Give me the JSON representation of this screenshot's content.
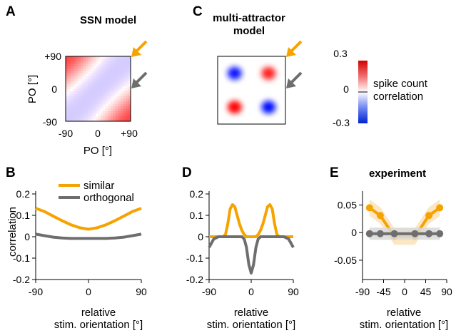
{
  "figure": {
    "panels": [
      {
        "letter": "A",
        "title": "SSN model"
      },
      {
        "letter": "C",
        "title_lines": [
          "multi-attractor",
          "model"
        ]
      },
      {
        "letter": "B"
      },
      {
        "letter": "D"
      },
      {
        "letter": "E",
        "title": "experiment"
      }
    ]
  },
  "colors": {
    "similar": "#f5a300",
    "orthogonal": "#6e6e6e",
    "positive": "#e60000",
    "negative": "#0033e0",
    "similar_band": "#fbe2b8",
    "orthogonal_band": "#d9d9d9"
  },
  "icons": [
    "arrow-similar-icon",
    "arrow-orthogonal-icon"
  ],
  "chart_data": [
    {
      "id": "A",
      "type": "heatmap",
      "title": "SSN model",
      "xlabel": "PO [°]",
      "ylabel": "PO [°]",
      "xticks": [
        "-90",
        "0",
        "+90"
      ],
      "yticks": [
        "+90",
        "0",
        "-90"
      ],
      "xlim": [
        -90,
        90
      ],
      "ylim": [
        -90,
        90
      ],
      "color_range": [
        -0.3,
        0.3
      ],
      "pattern": {
        "corner_value": 0.22,
        "negative_value": -0.05
      }
    },
    {
      "id": "C",
      "type": "heatmap",
      "title": "multi-attractor model",
      "pattern": {
        "blobs": [
          {
            "x": -45,
            "y": 45,
            "value": -0.28
          },
          {
            "x": 45,
            "y": 45,
            "value": 0.26
          },
          {
            "x": -45,
            "y": -45,
            "value": 0.3
          },
          {
            "x": 45,
            "y": -45,
            "value": -0.3
          }
        ]
      },
      "colorbar": {
        "ticks": [
          "0.3",
          "0",
          "-0.3"
        ],
        "label_lines": [
          "spike count",
          "correlation"
        ],
        "range": [
          -0.3,
          0.3
        ]
      }
    },
    {
      "id": "B",
      "type": "line",
      "xlabel_lines": [
        "relative",
        "stim. orientation [°]"
      ],
      "ylabel": "correlation",
      "xlim": [
        -90,
        90
      ],
      "ylim": [
        -0.2,
        0.2
      ],
      "xticks": [
        "-90",
        "0",
        "90"
      ],
      "yticks": [
        "0.2",
        "0.1",
        "0",
        "-0.1",
        "-0.2"
      ],
      "legend": [
        "similar",
        "orthogonal"
      ],
      "x": [
        -90,
        -75,
        -60,
        -45,
        -30,
        -15,
        0,
        15,
        30,
        45,
        60,
        75,
        90
      ],
      "series": [
        {
          "name": "similar",
          "values": [
            0.133,
            0.118,
            0.096,
            0.075,
            0.056,
            0.042,
            0.035,
            0.042,
            0.056,
            0.075,
            0.096,
            0.118,
            0.133
          ]
        },
        {
          "name": "orthogonal",
          "values": [
            0.012,
            0.005,
            -0.002,
            -0.006,
            -0.008,
            -0.008,
            -0.008,
            -0.008,
            -0.008,
            -0.006,
            -0.002,
            0.005,
            0.012
          ]
        }
      ]
    },
    {
      "id": "D",
      "type": "line",
      "xlabel_lines": [
        "relative",
        "stim. orientation [°]"
      ],
      "xlim": [
        -90,
        90
      ],
      "ylim": [
        -0.2,
        0.2
      ],
      "xticks": [
        "-90",
        "0",
        "90"
      ],
      "yticks": [
        "0.2",
        "0.1",
        "0",
        "-0.1",
        "-0.2"
      ],
      "x": [
        -90,
        -80,
        -70,
        -60,
        -55,
        -50,
        -45,
        -40,
        -35,
        -30,
        -25,
        -20,
        -15,
        -10,
        -5,
        0,
        5,
        10,
        15,
        20,
        25,
        30,
        35,
        40,
        45,
        50,
        55,
        60,
        70,
        80,
        90
      ],
      "series": [
        {
          "name": "similar",
          "values": [
            0.0,
            0.0,
            0.0,
            0.0,
            0.01,
            0.06,
            0.13,
            0.15,
            0.14,
            0.1,
            0.06,
            0.03,
            0.01,
            0.0,
            0.0,
            0.0,
            0.0,
            0.0,
            0.01,
            0.03,
            0.06,
            0.1,
            0.14,
            0.15,
            0.13,
            0.06,
            0.01,
            0.0,
            0.0,
            0.0,
            0.0
          ]
        },
        {
          "name": "orthogonal",
          "values": [
            -0.05,
            -0.01,
            0.0,
            0.0,
            0.0,
            0.0,
            0.0,
            0.0,
            0.0,
            0.0,
            0.0,
            0.0,
            -0.01,
            -0.05,
            -0.13,
            -0.17,
            -0.13,
            -0.05,
            -0.01,
            0.0,
            0.0,
            0.0,
            0.0,
            0.0,
            0.0,
            0.0,
            0.0,
            0.0,
            0.0,
            -0.01,
            -0.05
          ]
        }
      ]
    },
    {
      "id": "E",
      "type": "line",
      "title": "experiment",
      "xlabel_lines": [
        "relative",
        "stim. orientation [°]"
      ],
      "xlim": [
        -90,
        90
      ],
      "ylim": [
        -0.085,
        0.07
      ],
      "xticks": [
        "-90",
        "-45",
        "0",
        "45",
        "90"
      ],
      "yticks": [
        "0.05",
        "0",
        "-0.05"
      ],
      "x": [
        -75,
        -52,
        -22,
        22,
        52,
        75
      ],
      "series": [
        {
          "name": "similar",
          "values": [
            0.045,
            0.031,
            -0.007,
            -0.007,
            0.031,
            0.045
          ],
          "band": 0.015
        },
        {
          "name": "orthogonal",
          "values": [
            -0.002,
            -0.002,
            -0.002,
            -0.002,
            -0.002,
            -0.002
          ],
          "band": 0.011
        }
      ]
    }
  ]
}
